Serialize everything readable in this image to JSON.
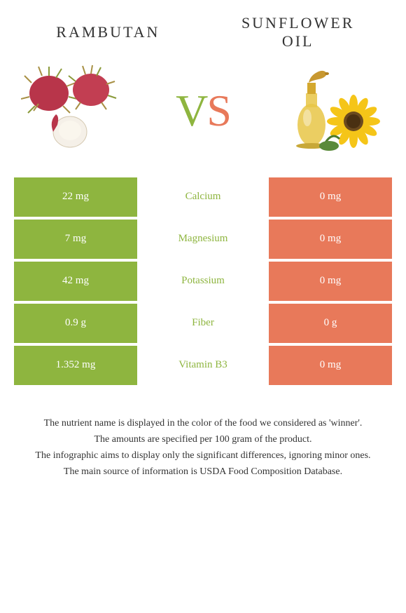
{
  "foods": {
    "left": {
      "name": "Rambutan",
      "color": "#8eb53f"
    },
    "right": {
      "name": "Sunflower Oil",
      "color": "#e8795a"
    }
  },
  "vs": {
    "v": "V",
    "s": "S"
  },
  "nutrients": [
    {
      "name": "Calcium",
      "left": "22 mg",
      "right": "0 mg",
      "winner": "left"
    },
    {
      "name": "Magnesium",
      "left": "7 mg",
      "right": "0 mg",
      "winner": "left"
    },
    {
      "name": "Potassium",
      "left": "42 mg",
      "right": "0 mg",
      "winner": "left"
    },
    {
      "name": "Fiber",
      "left": "0.9 g",
      "right": "0 g",
      "winner": "left"
    },
    {
      "name": "Vitamin B3",
      "left": "1.352 mg",
      "right": "0 mg",
      "winner": "left"
    }
  ],
  "colors": {
    "green": "#8eb53f",
    "orange": "#e8795a",
    "bg": "#ffffff",
    "text": "#333333"
  },
  "footer": [
    "The nutrient name is displayed in the color of the food we considered as 'winner'.",
    "The amounts are specified per 100 gram of the product.",
    "The infographic aims to display only the significant differences, ignoring minor ones.",
    "The main source of information is USDA Food Composition Database."
  ]
}
